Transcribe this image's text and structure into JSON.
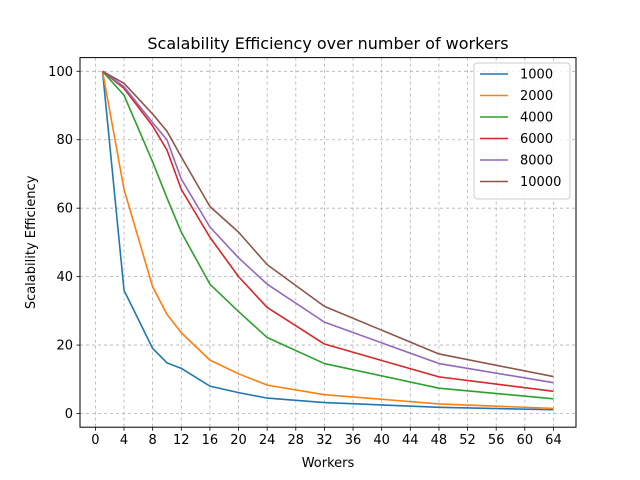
{
  "chart_data": {
    "type": "line",
    "title": "Scalability Efficiency over number of workers",
    "xlabel": "Workers",
    "ylabel": "Scalability Efficiency",
    "xlim": [
      -2.15,
      67.15
    ],
    "ylim": [
      -4,
      104
    ],
    "xticks": [
      0,
      4,
      8,
      12,
      16,
      20,
      24,
      28,
      32,
      36,
      40,
      44,
      48,
      52,
      56,
      60,
      64
    ],
    "yticks": [
      0,
      20,
      40,
      60,
      80,
      100
    ],
    "grid": true,
    "legend_position": "top-right",
    "x": [
      1,
      4,
      8,
      10,
      12,
      16,
      20,
      24,
      32,
      48,
      64
    ],
    "series": [
      {
        "name": "1000",
        "color": "#1f77b4",
        "values": [
          100,
          36.0,
          19.0,
          14.8,
          13.2,
          8.0,
          6.1,
          4.5,
          3.2,
          1.8,
          1.1
        ]
      },
      {
        "name": "2000",
        "color": "#ff7f0e",
        "values": [
          100,
          65.5,
          37.0,
          29.0,
          23.6,
          15.6,
          11.6,
          8.3,
          5.5,
          2.8,
          1.5
        ]
      },
      {
        "name": "4000",
        "color": "#2ca02c",
        "values": [
          100,
          93.0,
          73.5,
          63.0,
          53.0,
          37.8,
          29.8,
          22.2,
          14.6,
          7.4,
          4.3
        ]
      },
      {
        "name": "6000",
        "color": "#d62728",
        "values": [
          100,
          95.0,
          84.0,
          77.0,
          65.5,
          51.5,
          40.0,
          31.0,
          20.3,
          10.7,
          6.5
        ]
      },
      {
        "name": "8000",
        "color": "#9467bd",
        "values": [
          100,
          95.5,
          85.0,
          80.0,
          68.5,
          54.5,
          45.5,
          37.8,
          26.7,
          14.6,
          9.0
        ]
      },
      {
        "name": "10000",
        "color": "#8c564b",
        "values": [
          100,
          96.5,
          87.5,
          82.5,
          75.0,
          60.5,
          53.0,
          43.5,
          31.3,
          17.4,
          10.8
        ]
      }
    ]
  }
}
